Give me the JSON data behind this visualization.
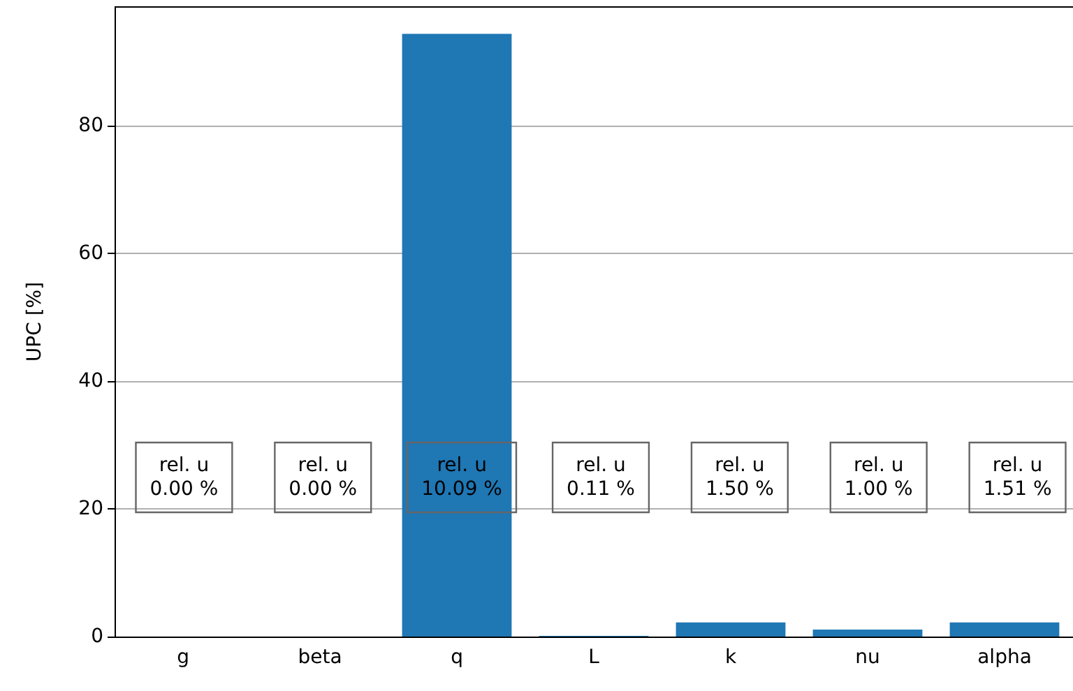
{
  "chart_data": {
    "type": "bar",
    "ylabel": "UPC [%]",
    "categories": [
      "g",
      "beta",
      "q",
      "L",
      "k",
      "nu",
      "alpha"
    ],
    "values": [
      0,
      0,
      94.4,
      0.1,
      2.2,
      1.1,
      2.2
    ],
    "color": "#1f77b4",
    "ylim": [
      0,
      98.6
    ],
    "yticks": [
      0,
      20,
      40,
      60,
      80
    ],
    "grid": "y",
    "annotations": [
      "rel. u\n0.00 %",
      "rel. u\n0.00 %",
      "rel. u\n10.09 %",
      "rel. u\n0.11 %",
      "rel. u\n1.50 %",
      "rel. u\n1.00 %",
      "rel. u\n1.51 %"
    ]
  }
}
